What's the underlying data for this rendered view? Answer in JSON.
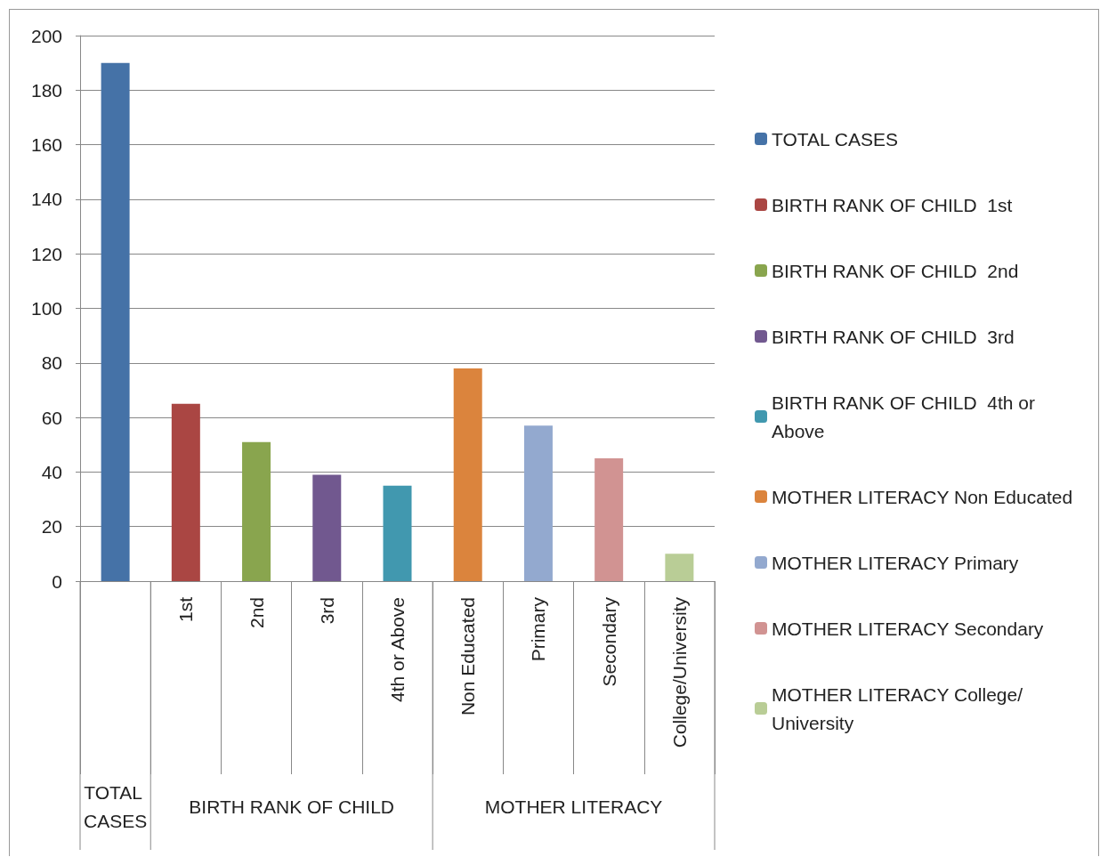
{
  "chart_data": {
    "type": "bar",
    "categories": [
      null,
      "1st",
      "2nd",
      "3rd",
      "4th or Above",
      "Non Educated",
      "Primary",
      "Secondary",
      "College/University"
    ],
    "series": [
      {
        "name": "TOTAL CASES",
        "color": "#4572a7",
        "values": [
          190,
          null,
          null,
          null,
          null,
          null,
          null,
          null,
          null
        ]
      },
      {
        "name": "BIRTH RANK OF CHILD  1st",
        "color": "#aa4643",
        "values": [
          null,
          65,
          null,
          null,
          null,
          null,
          null,
          null,
          null
        ]
      },
      {
        "name": "BIRTH RANK OF CHILD  2nd",
        "color": "#89a54e",
        "values": [
          null,
          null,
          51,
          null,
          null,
          null,
          null,
          null,
          null
        ]
      },
      {
        "name": "BIRTH RANK OF CHILD  3rd",
        "color": "#71588f",
        "values": [
          null,
          null,
          null,
          39,
          null,
          null,
          null,
          null,
          null
        ]
      },
      {
        "name": "BIRTH RANK OF CHILD  4th or Above",
        "color": "#4198af",
        "values": [
          null,
          null,
          null,
          null,
          35,
          null,
          null,
          null,
          null
        ]
      },
      {
        "name": "MOTHER LITERACY Non Educated",
        "color": "#db843d",
        "values": [
          null,
          null,
          null,
          null,
          null,
          78,
          null,
          null,
          null
        ]
      },
      {
        "name": "MOTHER LITERACY Primary",
        "color": "#93a9cf",
        "values": [
          null,
          null,
          null,
          null,
          null,
          null,
          57,
          null,
          null
        ]
      },
      {
        "name": "MOTHER LITERACY Secondary",
        "color": "#d19392",
        "values": [
          null,
          null,
          null,
          null,
          null,
          null,
          null,
          45,
          null
        ]
      },
      {
        "name": "MOTHER LITERACY College/University",
        "color": "#b9cd96",
        "values": [
          null,
          null,
          null,
          null,
          null,
          null,
          null,
          null,
          10
        ]
      }
    ],
    "annotations": [
      "TOTAL CASES",
      "BIRTH RANK OF CHILD",
      "MOTHER LITERACY"
    ],
    "ylim": [
      0,
      200
    ],
    "yticks": [
      0,
      20,
      40,
      60,
      80,
      100,
      120,
      140,
      160,
      180,
      200
    ],
    "grid": "y",
    "legend": "right"
  }
}
